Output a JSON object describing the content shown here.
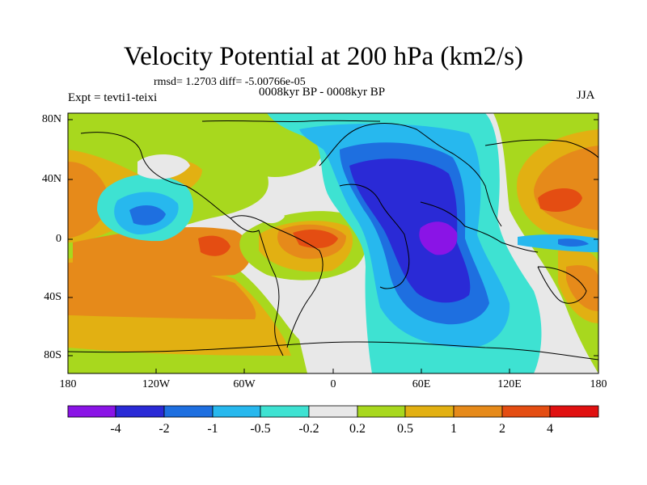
{
  "title": "Velocity Potential at 200 hPa (km2/s)",
  "stats_line": "rmsd= 1.2703 diff= -5.00766e-05",
  "period_line": "0008kyr BP - 0008kyr BP",
  "experiment_line": "Expt = tevti1-teixi",
  "season": "JJA",
  "axes": {
    "y_ticks": [
      "80N",
      "40N",
      "0",
      "40S",
      "80S"
    ],
    "x_ticks": [
      "180",
      "120W",
      "60W",
      "0",
      "60E",
      "120E",
      "180"
    ]
  },
  "colorbar": {
    "colors": [
      "#8a14e6",
      "#2a2ad6",
      "#1e6fe0",
      "#27b8ee",
      "#3ee2d2",
      "#e8e8e8",
      "#a8d81e",
      "#e2b012",
      "#e68a1a",
      "#e44d12",
      "#e01010"
    ],
    "labels": [
      "-4",
      "-2",
      "-1",
      "-0.5",
      "-0.2",
      "0.2",
      "0.5",
      "1",
      "2",
      "4"
    ]
  }
}
